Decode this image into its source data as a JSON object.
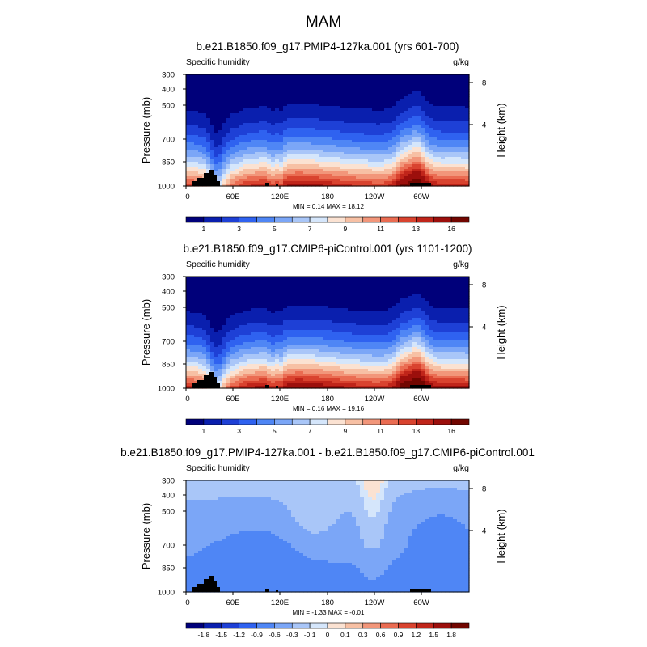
{
  "figure_title": "MAM",
  "chart_data": [
    {
      "type": "heatmap",
      "title": "b.e21.B1850.f09_g17.PMIP4-127ka.001 (yrs 601-700)",
      "left_label": "Specific humidity",
      "right_label": "g/kg",
      "ylabel": "Pressure (mb)",
      "ylabel_right": "Height (km)",
      "x_ticks": [
        "0",
        "60E",
        "120E",
        "180",
        "120W",
        "60W"
      ],
      "y_ticks": [
        "300",
        "400",
        "500",
        "700",
        "850",
        "1000"
      ],
      "y_ticks_right": [
        "8",
        "4"
      ],
      "stats": "MIN =   0.14  MAX =  18.12",
      "colorbar_labels": [
        "1",
        "3",
        "5",
        "7",
        "9",
        "11",
        "13",
        "16"
      ],
      "colors": [
        "#00007a",
        "#0a1fae",
        "#1e40d6",
        "#2f62f0",
        "#4f86f5",
        "#7ba6f7",
        "#a9c6f8",
        "#d5e6fb",
        "#fbe2d2",
        "#f7c0a4",
        "#f2967a",
        "#ea6c52",
        "#d9432f",
        "#c0251a",
        "#9c0f0c",
        "#720600"
      ],
      "min": 0.14,
      "max": 18.12,
      "mode": "abs"
    },
    {
      "type": "heatmap",
      "title": "b.e21.B1850.f09_g17.CMIP6-piControl.001 (yrs 1101-1200)",
      "left_label": "Specific humidity",
      "right_label": "g/kg",
      "ylabel": "Pressure (mb)",
      "ylabel_right": "Height (km)",
      "x_ticks": [
        "0",
        "60E",
        "120E",
        "180",
        "120W",
        "60W"
      ],
      "y_ticks": [
        "300",
        "400",
        "500",
        "700",
        "850",
        "1000"
      ],
      "y_ticks_right": [
        "8",
        "4"
      ],
      "stats": "MIN =   0.16  MAX =  19.16",
      "colorbar_labels": [
        "1",
        "3",
        "5",
        "7",
        "9",
        "11",
        "13",
        "16"
      ],
      "colors": [
        "#00007a",
        "#0a1fae",
        "#1e40d6",
        "#2f62f0",
        "#4f86f5",
        "#7ba6f7",
        "#a9c6f8",
        "#d5e6fb",
        "#fbe2d2",
        "#f7c0a4",
        "#f2967a",
        "#ea6c52",
        "#d9432f",
        "#c0251a",
        "#9c0f0c",
        "#720600"
      ],
      "min": 0.16,
      "max": 19.16,
      "mode": "abs"
    },
    {
      "type": "heatmap",
      "title": "b.e21.B1850.f09_g17.PMIP4-127ka.001 - b.e21.B1850.f09_g17.CMIP6-piControl.001",
      "left_label": "Specific humidity",
      "right_label": "g/kg",
      "ylabel": "Pressure (mb)",
      "ylabel_right": "Height (km)",
      "x_ticks": [
        "0",
        "60E",
        "120E",
        "180",
        "120W",
        "60W"
      ],
      "y_ticks": [
        "300",
        "400",
        "500",
        "700",
        "850",
        "1000"
      ],
      "y_ticks_right": [
        "8",
        "4"
      ],
      "stats": "MIN =  -1.33  MAX =  -0.01",
      "colorbar_labels": [
        "-1.8",
        "-1.5",
        "-1.2",
        "-0.9",
        "-0.6",
        "-0.3",
        "-0.1",
        "0",
        "0.1",
        "0.3",
        "0.6",
        "0.9",
        "1.2",
        "1.5",
        "1.8"
      ],
      "colors": [
        "#00007a",
        "#0a1fae",
        "#1e40d6",
        "#2f62f0",
        "#4f86f5",
        "#7ba6f7",
        "#a9c6f8",
        "#d5e6fb",
        "#fbe2d2",
        "#f7c0a4",
        "#f2967a",
        "#ea6c52",
        "#d9432f",
        "#c0251a",
        "#9c0f0c",
        "#720600"
      ],
      "min": -1.33,
      "max": -0.01,
      "mode": "diff"
    }
  ]
}
